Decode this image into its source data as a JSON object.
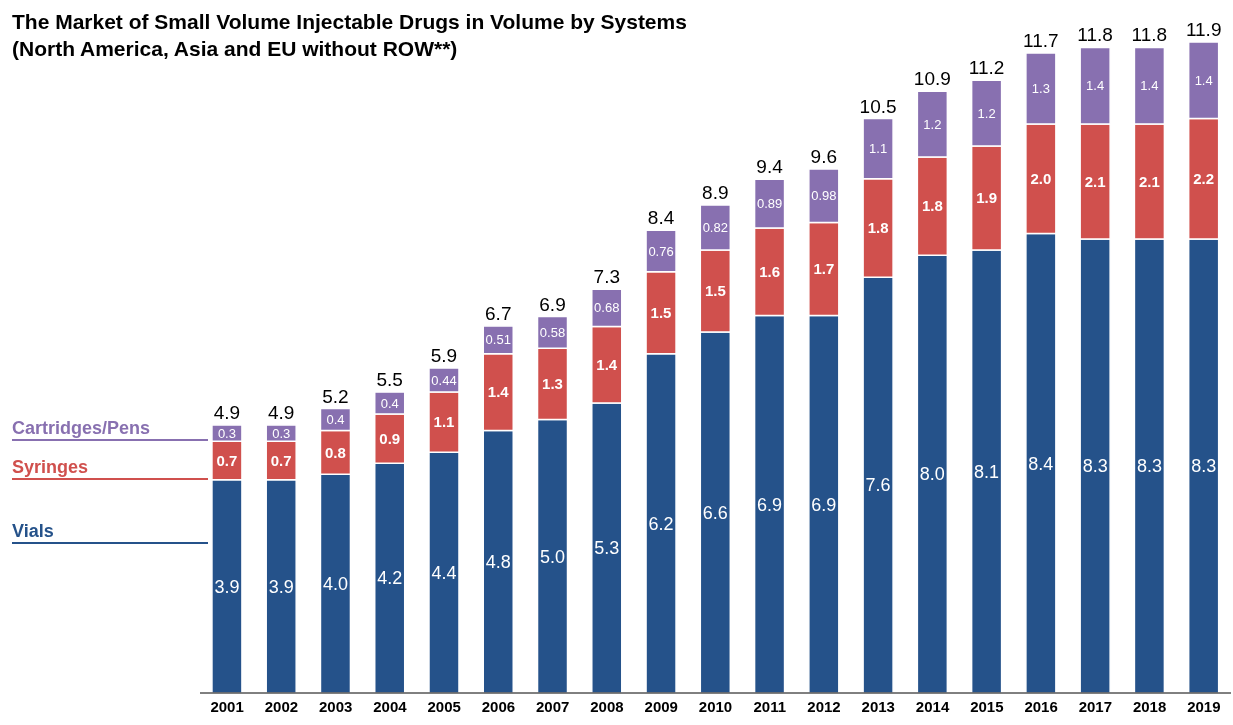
{
  "chart_data": {
    "type": "bar",
    "title": "The Market of Small Volume Injectable Drugs in Volume by Systems (North America, Asia and EU without ROW**)",
    "categories": [
      "2001",
      "2002",
      "2003",
      "2004",
      "2005",
      "2006",
      "2007",
      "2008",
      "2009",
      "2010",
      "2011",
      "2012",
      "2013",
      "2014",
      "2015",
      "2016",
      "2017",
      "2018",
      "2019"
    ],
    "stacked": true,
    "legend": "left",
    "series": [
      {
        "name": "Vials",
        "color": "#25528a",
        "values": [
          3.9,
          3.9,
          4.0,
          4.2,
          4.4,
          4.8,
          5.0,
          5.3,
          6.2,
          6.6,
          6.9,
          6.9,
          7.6,
          8.0,
          8.1,
          8.4,
          8.3,
          8.3,
          8.3
        ],
        "value_labels": [
          "3.9",
          "3.9",
          "4.0",
          "4.2",
          "4.4",
          "4.8",
          "5.0",
          "5.3",
          "6.2",
          "6.6",
          "6.9",
          "6.9",
          "7.6",
          "8.0",
          "8.1",
          "8.4",
          "8.3",
          "8.3",
          "8.3"
        ]
      },
      {
        "name": "Syringes",
        "color": "#d0504d",
        "values": [
          0.7,
          0.7,
          0.8,
          0.9,
          1.1,
          1.4,
          1.3,
          1.4,
          1.5,
          1.5,
          1.6,
          1.7,
          1.8,
          1.8,
          1.9,
          2.0,
          2.1,
          2.1,
          2.2
        ],
        "value_labels": [
          "0.7",
          "0.7",
          "0.8",
          "0.9",
          "1.1",
          "1.4",
          "1.3",
          "1.4",
          "1.5",
          "1.5",
          "1.6",
          "1.7",
          "1.8",
          "1.8",
          "1.9",
          "2.0",
          "2.1",
          "2.1",
          "2.2"
        ]
      },
      {
        "name": "Cartridges/Pens",
        "color": "#8870b0",
        "values": [
          0.3,
          0.3,
          0.4,
          0.4,
          0.44,
          0.51,
          0.58,
          0.68,
          0.76,
          0.82,
          0.89,
          0.98,
          1.1,
          1.2,
          1.2,
          1.3,
          1.4,
          1.4,
          1.4
        ],
        "value_labels": [
          "0.3",
          "0.3",
          "0.4",
          "0.4",
          "0.44",
          "0.51",
          "0.58",
          "0.68",
          "0.76",
          "0.82",
          "0.89",
          "0.98",
          "1.1",
          "1.2",
          "1.2",
          "1.3",
          "1.4",
          "1.4",
          "1.4"
        ]
      }
    ],
    "totals": [
      "4.9",
      "4.9",
      "5.2",
      "5.5",
      "5.9",
      "6.7",
      "6.9",
      "7.3",
      "8.4",
      "8.9",
      "9.4",
      "9.6",
      "10.5",
      "10.9",
      "11.2",
      "11.7",
      "11.8",
      "11.8",
      "11.9"
    ]
  }
}
